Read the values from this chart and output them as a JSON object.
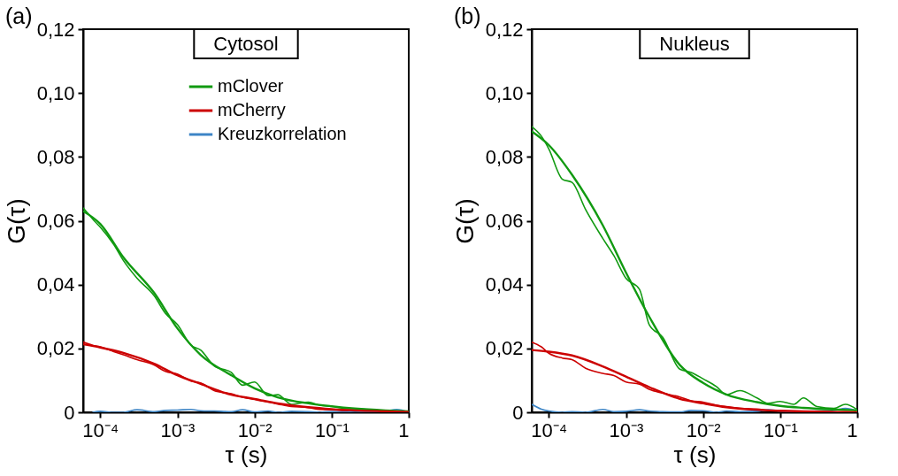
{
  "chart_data": [
    {
      "type": "line",
      "title": "Cytosol",
      "xlabel": "τ (s)",
      "ylabel": "G(τ)",
      "annotations": [
        "(a)"
      ],
      "log": "x",
      "xlim": [
        6e-05,
        1
      ],
      "xticks": [
        {
          "value": 0.0001,
          "label": "10⁻⁴"
        },
        {
          "value": 0.001,
          "label": "10⁻³"
        },
        {
          "value": 0.01,
          "label": "10⁻²"
        },
        {
          "value": 0.1,
          "label": "10⁻¹"
        },
        1
      ],
      "ylim": [
        0,
        0.12
      ],
      "yticks": [
        0,
        {
          "value": 0.02,
          "label": "0,02"
        },
        {
          "value": 0.04,
          "label": "0,04"
        },
        {
          "value": 0.06,
          "label": "0,06"
        },
        {
          "value": 0.08,
          "label": "0,08"
        },
        {
          "value": 0.1,
          "label": "0,10"
        },
        {
          "value": 0.12,
          "label": "0,12"
        }
      ],
      "legend": "top right",
      "series": [
        {
          "name": "mClover",
          "color": "#119a11",
          "x": [
            6e-05,
            8e-05,
            0.0001,
            0.00015,
            0.0002,
            0.0003,
            0.0005,
            0.0007,
            0.001,
            0.0015,
            0.002,
            0.003,
            0.005,
            0.007,
            0.01,
            0.015,
            0.02,
            0.03,
            0.05,
            0.07,
            0.1,
            0.15,
            0.2,
            0.3,
            0.5,
            0.7,
            1
          ],
          "values": [
            0.064,
            0.0605,
            0.058,
            0.0525,
            0.0475,
            0.042,
            0.0365,
            0.031,
            0.0275,
            0.021,
            0.0195,
            0.0145,
            0.0125,
            0.0085,
            0.0095,
            0.0052,
            0.0055,
            0.0025,
            0.0032,
            0.0022,
            0.0018,
            0.0012,
            0.0011,
            0.0008,
            0.0005,
            0.0003,
            0.0002
          ]
        },
        {
          "name": "mCherry",
          "color": "#cc0000",
          "x": [
            6e-05,
            8e-05,
            0.0001,
            0.00015,
            0.0002,
            0.0003,
            0.0005,
            0.0007,
            0.001,
            0.0015,
            0.002,
            0.003,
            0.005,
            0.007,
            0.01,
            0.015,
            0.02,
            0.03,
            0.05,
            0.07,
            0.1,
            0.15,
            0.2,
            0.3,
            0.5,
            0.7,
            1
          ],
          "values": [
            0.022,
            0.021,
            0.0205,
            0.019,
            0.018,
            0.0165,
            0.0148,
            0.0128,
            0.012,
            0.0098,
            0.0092,
            0.0068,
            0.0058,
            0.0047,
            0.004,
            0.0032,
            0.0026,
            0.0018,
            0.0015,
            0.0009,
            0.0008,
            0.0005,
            0.0006,
            0.0003,
            0.0002,
            0.0001,
            0
          ]
        },
        {
          "name": "Kreuzkorrelation",
          "color": "#3d85c6",
          "x": [
            8e-05,
            0.0001,
            0.00015,
            0.0002,
            0.0003,
            0.0005,
            0.0007,
            0.001,
            0.0015,
            0.002,
            0.003,
            0.005,
            0.007,
            0.01,
            0.015,
            0.02,
            0.03,
            0.05,
            0.07,
            0.1,
            0.15,
            0.2,
            0.3,
            0.5,
            0.7,
            1
          ],
          "values": [
            0,
            0.0003,
            0,
            0,
            0.0008,
            0.0002,
            0.0006,
            0.0007,
            0.0009,
            0.0005,
            0.0004,
            0.0002,
            0.0008,
            0.0001,
            0.0004,
            0,
            0.0003,
            0.0002,
            0,
            0.0002,
            0.0001,
            0.0003,
            0.0001,
            0.0004,
            0.0009,
            0
          ]
        },
        {
          "type": "line",
          "color": "#119a11",
          "x": [
            6e-05,
            0.0001,
            0.0002,
            0.0005,
            0.001,
            0.002,
            0.005,
            0.01,
            0.02,
            0.05,
            0.1,
            0.2,
            0.5,
            1
          ],
          "values": [
            0.063,
            0.059,
            0.0485,
            0.0374,
            0.0263,
            0.018,
            0.0116,
            0.0075,
            0.0047,
            0.0028,
            0.0019,
            0.0012,
            0.0006,
            0.0003
          ]
        },
        {
          "type": "line",
          "color": "#cc0000",
          "x": [
            6e-05,
            0.0001,
            0.0002,
            0.0005,
            0.001,
            0.002,
            0.005,
            0.01,
            0.02,
            0.05,
            0.1,
            0.2,
            0.5,
            1
          ],
          "values": [
            0.0213,
            0.0203,
            0.0186,
            0.0152,
            0.0116,
            0.0089,
            0.0055,
            0.0042,
            0.0028,
            0.0016,
            0.001,
            0.0006,
            0.0003,
            0.0001
          ]
        }
      ]
    },
    {
      "type": "line",
      "title": "Nukleus",
      "xlabel": "τ (s)",
      "ylabel": "G(τ)",
      "annotations": [
        "(b)"
      ],
      "log": "x",
      "xlim": [
        6e-05,
        1
      ],
      "xticks": [
        {
          "value": 0.0001,
          "label": "10⁻⁴"
        },
        {
          "value": 0.001,
          "label": "10⁻³"
        },
        {
          "value": 0.01,
          "label": "10⁻²"
        },
        {
          "value": 0.1,
          "label": "10⁻¹"
        },
        1
      ],
      "ylim": [
        0,
        0.12
      ],
      "yticks": [
        0,
        {
          "value": 0.02,
          "label": "0,02"
        },
        {
          "value": 0.04,
          "label": "0,04"
        },
        {
          "value": 0.06,
          "label": "0,06"
        },
        {
          "value": 0.08,
          "label": "0,08"
        },
        {
          "value": 0.1,
          "label": "0,10"
        },
        {
          "value": 0.12,
          "label": "0,12"
        }
      ],
      "series": [
        {
          "color": "#119a11",
          "x": [
            6e-05,
            8e-05,
            0.0001,
            0.00015,
            0.0002,
            0.0003,
            0.0005,
            0.0007,
            0.001,
            0.0015,
            0.002,
            0.003,
            0.005,
            0.007,
            0.01,
            0.015,
            0.02,
            0.03,
            0.05,
            0.07,
            0.1,
            0.15,
            0.2,
            0.3,
            0.5,
            0.7,
            1
          ],
          "values": [
            0.0895,
            0.0865,
            0.0825,
            0.073,
            0.072,
            0.0635,
            0.0545,
            0.049,
            0.042,
            0.0385,
            0.0275,
            0.0235,
            0.0135,
            0.0125,
            0.0105,
            0.008,
            0.0055,
            0.0068,
            0.0045,
            0.0028,
            0.0034,
            0.0025,
            0.0045,
            0.0018,
            0.0012,
            0.0025,
            0.0008
          ]
        },
        {
          "color": "#cc0000",
          "x": [
            6e-05,
            8e-05,
            0.0001,
            0.00015,
            0.0002,
            0.0003,
            0.0005,
            0.0007,
            0.001,
            0.0015,
            0.002,
            0.003,
            0.005,
            0.007,
            0.01,
            0.015,
            0.02,
            0.03,
            0.05,
            0.07,
            0.1,
            0.15,
            0.2,
            0.3,
            0.5,
            0.7,
            1
          ],
          "values": [
            0.022,
            0.0205,
            0.0185,
            0.017,
            0.0165,
            0.0138,
            0.0122,
            0.0115,
            0.0095,
            0.0088,
            0.0072,
            0.006,
            0.0048,
            0.0036,
            0.0032,
            0.0022,
            0.0018,
            0.0012,
            0.001,
            0.0006,
            0.0004,
            0.0003,
            0.0002,
            0.0001,
            0,
            0.0001,
            0
          ]
        },
        {
          "color": "#3d85c6",
          "x": [
            6e-05,
            8e-05,
            0.0001,
            0.00015,
            0.0002,
            0.0003,
            0.0005,
            0.0007,
            0.001,
            0.0015,
            0.002,
            0.003,
            0.005,
            0.007,
            0.01,
            0.015,
            0.02,
            0.03,
            0.05,
            0.07,
            0.1,
            0.15,
            0.2,
            0.3,
            0.5,
            0.7,
            1
          ],
          "values": [
            0.0025,
            0.001,
            0.0004,
            0,
            0.0002,
            0,
            0.0009,
            0.0002,
            0.0003,
            0.0008,
            0.0004,
            0.0002,
            0.0001,
            0.0006,
            0.0005,
            0,
            0.0004,
            0.0002,
            0.0003,
            0.0008,
            0.0004,
            0.0002,
            0.0003,
            0.0004,
            0.0006,
            0.0012,
            0.0004
          ]
        },
        {
          "type": "line",
          "color": "#119a11",
          "x": [
            6e-05,
            0.0001,
            0.0002,
            0.0005,
            0.001,
            0.002,
            0.005,
            0.01,
            0.02,
            0.05,
            0.1,
            0.2,
            0.5,
            1
          ],
          "values": [
            0.088,
            0.0837,
            0.0744,
            0.0586,
            0.0438,
            0.03,
            0.0148,
            0.0092,
            0.0056,
            0.0032,
            0.002,
            0.0014,
            0.0009,
            0.0006
          ]
        },
        {
          "type": "line",
          "color": "#cc0000",
          "x": [
            6e-05,
            0.0001,
            0.0002,
            0.0005,
            0.001,
            0.002,
            0.005,
            0.01,
            0.02,
            0.05,
            0.1,
            0.2,
            0.5,
            1
          ],
          "values": [
            0.0195,
            0.019,
            0.0178,
            0.0144,
            0.0112,
            0.0079,
            0.0042,
            0.0028,
            0.0016,
            0.0008,
            0.0005,
            0.0003,
            0.0001,
            0
          ]
        }
      ]
    }
  ]
}
